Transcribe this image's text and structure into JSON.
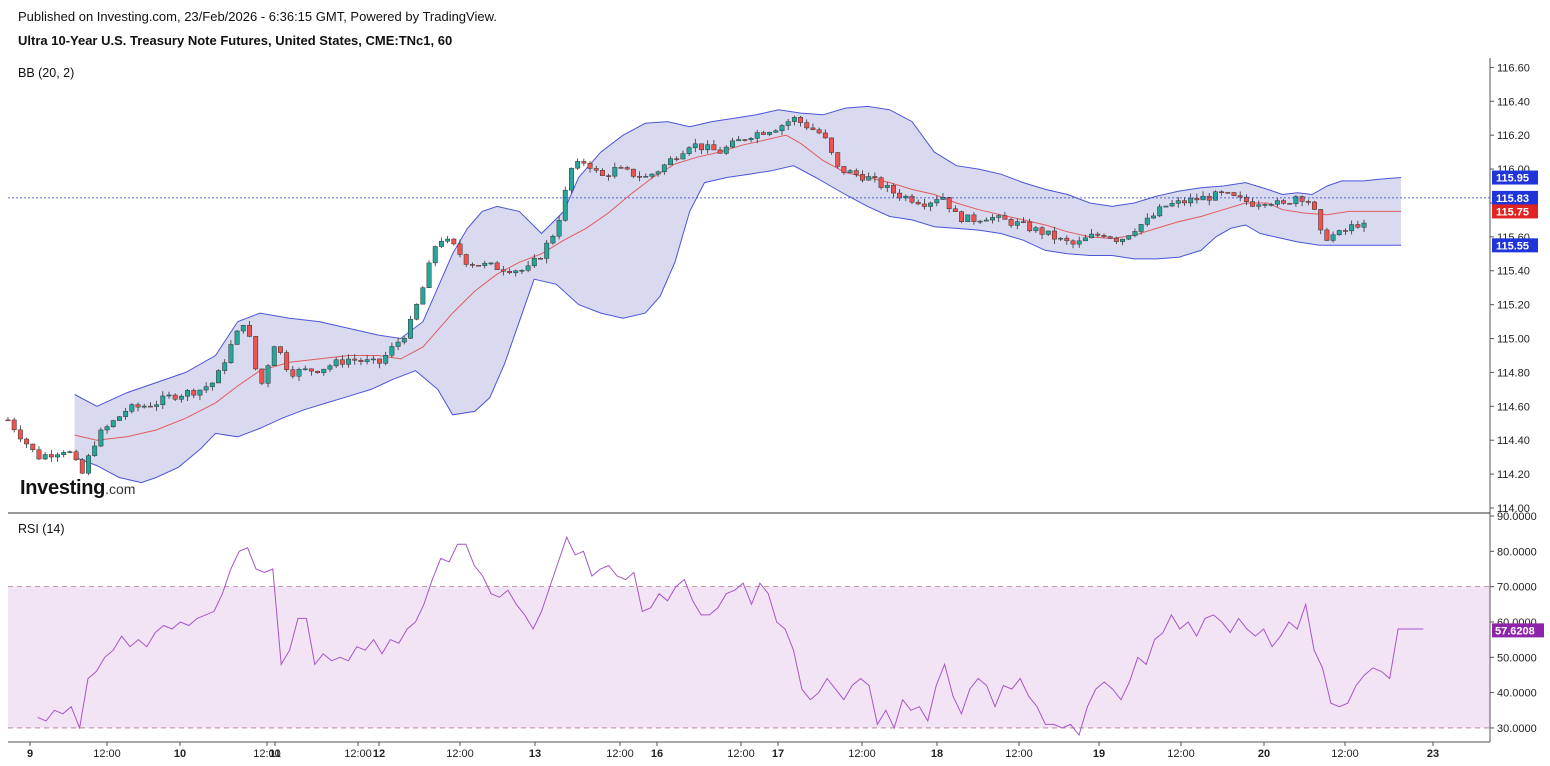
{
  "header": {
    "published": "Published on Investing.com, 23/Feb/2026 - 6:36:15 GMT, Powered by TradingView.",
    "title": "Ultra 10-Year U.S. Treasury Note Futures, United States, CME:TNc1, 60"
  },
  "logo": {
    "word": "Investing",
    "suffix": ".com"
  },
  "colors": {
    "up": "#26a69a",
    "down": "#ef5350",
    "band_fill": "#d9daf0",
    "band_line": "#4b55d6",
    "basis": "#e05c5c",
    "rsi_line": "#a855c8",
    "rsi_fill": "#f2e4f5",
    "last_price": "#1e3fd1",
    "badge_blue": "#1f35d9",
    "badge_red": "#e02424",
    "badge_purple": "#8e24aa"
  },
  "chart_data": [
    {
      "type": "candlestick",
      "indicator": "BB (20, 2)",
      "y_ticks": [
        "116.60",
        "116.40",
        "116.20",
        "116.00",
        "115.80",
        "115.60",
        "115.40",
        "115.20",
        "115.00",
        "114.80",
        "114.60",
        "114.40",
        "114.20",
        "114.00"
      ],
      "ylim": [
        114.0,
        116.62
      ],
      "x_ticks": [
        "9",
        "12:00",
        "10",
        "12:00",
        "11",
        "12:00",
        "12",
        "12:00",
        "13",
        "12:00",
        "16",
        "12:00",
        "17",
        "12:00",
        "18",
        "12:00",
        "19",
        "12:00",
        "20",
        "12:00",
        "23"
      ],
      "price_badges": [
        {
          "label": "115.95",
          "value": 115.95,
          "color": "blue"
        },
        {
          "label": "115.83",
          "value": 115.83,
          "color": "blue"
        },
        {
          "label": "115.75",
          "value": 115.75,
          "color": "red"
        },
        {
          "label": "115.55",
          "value": 115.55,
          "color": "blue"
        }
      ],
      "last_price": 115.83,
      "close_path": [
        [
          0,
          114.52
        ],
        [
          0.02,
          114.3
        ],
        [
          0.04,
          114.35
        ],
        [
          0.05,
          114.2
        ],
        [
          0.06,
          114.42
        ],
        [
          0.08,
          114.58
        ],
        [
          0.1,
          114.62
        ],
        [
          0.11,
          114.66
        ],
        [
          0.13,
          114.7
        ],
        [
          0.14,
          114.75
        ],
        [
          0.15,
          114.95
        ],
        [
          0.16,
          115.12
        ],
        [
          0.17,
          114.7
        ],
        [
          0.18,
          114.98
        ],
        [
          0.19,
          114.8
        ],
        [
          0.21,
          114.82
        ],
        [
          0.23,
          114.88
        ],
        [
          0.25,
          114.85
        ],
        [
          0.26,
          114.95
        ],
        [
          0.27,
          115.05
        ],
        [
          0.28,
          115.3
        ],
        [
          0.29,
          115.6
        ],
        [
          0.3,
          115.55
        ],
        [
          0.31,
          115.45
        ],
        [
          0.33,
          115.42
        ],
        [
          0.35,
          115.4
        ],
        [
          0.36,
          115.5
        ],
        [
          0.37,
          115.65
        ],
        [
          0.38,
          116.0
        ],
        [
          0.39,
          116.05
        ],
        [
          0.4,
          115.95
        ],
        [
          0.41,
          116.0
        ],
        [
          0.43,
          115.95
        ],
        [
          0.44,
          116.0
        ],
        [
          0.46,
          116.15
        ],
        [
          0.48,
          116.1
        ],
        [
          0.5,
          116.2
        ],
        [
          0.52,
          116.25
        ],
        [
          0.53,
          116.3
        ],
        [
          0.55,
          116.2
        ],
        [
          0.56,
          116.0
        ],
        [
          0.58,
          115.95
        ],
        [
          0.59,
          115.9
        ],
        [
          0.6,
          115.85
        ],
        [
          0.62,
          115.8
        ],
        [
          0.63,
          115.85
        ],
        [
          0.64,
          115.72
        ],
        [
          0.65,
          115.7
        ],
        [
          0.66,
          115.72
        ],
        [
          0.68,
          115.68
        ],
        [
          0.7,
          115.62
        ],
        [
          0.71,
          115.58
        ],
        [
          0.72,
          115.55
        ],
        [
          0.73,
          115.6
        ],
        [
          0.74,
          115.62
        ],
        [
          0.75,
          115.58
        ],
        [
          0.76,
          115.65
        ],
        [
          0.77,
          115.7
        ],
        [
          0.78,
          115.78
        ],
        [
          0.79,
          115.8
        ],
        [
          0.8,
          115.82
        ],
        [
          0.82,
          115.85
        ],
        [
          0.83,
          115.82
        ],
        [
          0.84,
          115.8
        ],
        [
          0.85,
          115.82
        ],
        [
          0.86,
          115.78
        ],
        [
          0.87,
          115.85
        ],
        [
          0.88,
          115.8
        ],
        [
          0.885,
          115.62
        ],
        [
          0.89,
          115.6
        ],
        [
          0.9,
          115.62
        ],
        [
          0.91,
          115.68
        ],
        [
          0.915,
          115.66
        ]
      ],
      "bands": {
        "upper": [
          [
            0.045,
            114.67
          ],
          [
            0.06,
            114.6
          ],
          [
            0.08,
            114.68
          ],
          [
            0.1,
            114.74
          ],
          [
            0.12,
            114.8
          ],
          [
            0.14,
            114.9
          ],
          [
            0.155,
            115.1
          ],
          [
            0.17,
            115.15
          ],
          [
            0.19,
            115.12
          ],
          [
            0.21,
            115.1
          ],
          [
            0.23,
            115.06
          ],
          [
            0.25,
            115.02
          ],
          [
            0.265,
            115.0
          ],
          [
            0.28,
            115.1
          ],
          [
            0.29,
            115.3
          ],
          [
            0.3,
            115.5
          ],
          [
            0.31,
            115.65
          ],
          [
            0.32,
            115.75
          ],
          [
            0.33,
            115.78
          ],
          [
            0.345,
            115.75
          ],
          [
            0.36,
            115.62
          ],
          [
            0.375,
            115.75
          ],
          [
            0.385,
            115.95
          ],
          [
            0.395,
            116.05
          ],
          [
            0.4,
            116.1
          ],
          [
            0.415,
            116.2
          ],
          [
            0.43,
            116.27
          ],
          [
            0.445,
            116.28
          ],
          [
            0.46,
            116.25
          ],
          [
            0.475,
            116.28
          ],
          [
            0.49,
            116.3
          ],
          [
            0.505,
            116.32
          ],
          [
            0.52,
            116.35
          ],
          [
            0.535,
            116.33
          ],
          [
            0.55,
            116.32
          ],
          [
            0.565,
            116.36
          ],
          [
            0.58,
            116.37
          ],
          [
            0.595,
            116.35
          ],
          [
            0.61,
            116.28
          ],
          [
            0.625,
            116.1
          ],
          [
            0.64,
            116.02
          ],
          [
            0.655,
            116.0
          ],
          [
            0.67,
            115.97
          ],
          [
            0.685,
            115.92
          ],
          [
            0.7,
            115.88
          ],
          [
            0.715,
            115.85
          ],
          [
            0.73,
            115.8
          ],
          [
            0.745,
            115.78
          ],
          [
            0.76,
            115.8
          ],
          [
            0.775,
            115.84
          ],
          [
            0.79,
            115.87
          ],
          [
            0.805,
            115.89
          ],
          [
            0.82,
            115.9
          ],
          [
            0.835,
            115.92
          ],
          [
            0.85,
            115.88
          ],
          [
            0.86,
            115.85
          ],
          [
            0.87,
            115.86
          ],
          [
            0.88,
            115.85
          ],
          [
            0.89,
            115.9
          ],
          [
            0.9,
            115.93
          ],
          [
            0.915,
            115.93
          ],
          [
            0.925,
            115.94
          ],
          [
            0.94,
            115.95
          ]
        ],
        "lower": [
          [
            0.045,
            114.3
          ],
          [
            0.06,
            114.25
          ],
          [
            0.075,
            114.18
          ],
          [
            0.09,
            114.15
          ],
          [
            0.1,
            114.18
          ],
          [
            0.115,
            114.24
          ],
          [
            0.13,
            114.35
          ],
          [
            0.14,
            114.44
          ],
          [
            0.155,
            114.42
          ],
          [
            0.17,
            114.47
          ],
          [
            0.185,
            114.53
          ],
          [
            0.2,
            114.58
          ],
          [
            0.215,
            114.62
          ],
          [
            0.23,
            114.66
          ],
          [
            0.245,
            114.7
          ],
          [
            0.26,
            114.76
          ],
          [
            0.275,
            114.81
          ],
          [
            0.29,
            114.7
          ],
          [
            0.3,
            114.55
          ],
          [
            0.315,
            114.57
          ],
          [
            0.325,
            114.65
          ],
          [
            0.335,
            114.85
          ],
          [
            0.345,
            115.1
          ],
          [
            0.355,
            115.35
          ],
          [
            0.37,
            115.32
          ],
          [
            0.385,
            115.2
          ],
          [
            0.4,
            115.15
          ],
          [
            0.415,
            115.12
          ],
          [
            0.43,
            115.15
          ],
          [
            0.44,
            115.25
          ],
          [
            0.45,
            115.45
          ],
          [
            0.46,
            115.75
          ],
          [
            0.47,
            115.92
          ],
          [
            0.485,
            115.95
          ],
          [
            0.5,
            115.97
          ],
          [
            0.515,
            115.99
          ],
          [
            0.53,
            116.02
          ],
          [
            0.545,
            115.95
          ],
          [
            0.555,
            115.9
          ],
          [
            0.565,
            115.85
          ],
          [
            0.58,
            115.78
          ],
          [
            0.595,
            115.72
          ],
          [
            0.61,
            115.7
          ],
          [
            0.625,
            115.66
          ],
          [
            0.64,
            115.65
          ],
          [
            0.655,
            115.64
          ],
          [
            0.67,
            115.62
          ],
          [
            0.685,
            115.58
          ],
          [
            0.7,
            115.52
          ],
          [
            0.715,
            115.5
          ],
          [
            0.73,
            115.49
          ],
          [
            0.745,
            115.49
          ],
          [
            0.76,
            115.47
          ],
          [
            0.775,
            115.47
          ],
          [
            0.79,
            115.48
          ],
          [
            0.805,
            115.52
          ],
          [
            0.815,
            115.6
          ],
          [
            0.825,
            115.65
          ],
          [
            0.835,
            115.67
          ],
          [
            0.845,
            115.62
          ],
          [
            0.855,
            115.6
          ],
          [
            0.87,
            115.57
          ],
          [
            0.885,
            115.55
          ],
          [
            0.9,
            115.55
          ],
          [
            0.915,
            115.55
          ],
          [
            0.94,
            115.55
          ]
        ],
        "basis": [
          [
            0.045,
            114.43
          ],
          [
            0.06,
            114.4
          ],
          [
            0.08,
            114.42
          ],
          [
            0.1,
            114.46
          ],
          [
            0.12,
            114.53
          ],
          [
            0.14,
            114.62
          ],
          [
            0.155,
            114.72
          ],
          [
            0.17,
            114.81
          ],
          [
            0.19,
            114.86
          ],
          [
            0.21,
            114.88
          ],
          [
            0.23,
            114.9
          ],
          [
            0.25,
            114.9
          ],
          [
            0.265,
            114.88
          ],
          [
            0.28,
            114.95
          ],
          [
            0.29,
            115.05
          ],
          [
            0.3,
            115.15
          ],
          [
            0.315,
            115.28
          ],
          [
            0.33,
            115.38
          ],
          [
            0.345,
            115.45
          ],
          [
            0.36,
            115.5
          ],
          [
            0.375,
            115.58
          ],
          [
            0.39,
            115.65
          ],
          [
            0.405,
            115.74
          ],
          [
            0.42,
            115.85
          ],
          [
            0.435,
            115.95
          ],
          [
            0.45,
            116.03
          ],
          [
            0.465,
            116.07
          ],
          [
            0.48,
            116.1
          ],
          [
            0.495,
            116.14
          ],
          [
            0.51,
            116.17
          ],
          [
            0.525,
            116.2
          ],
          [
            0.535,
            116.15
          ],
          [
            0.55,
            116.05
          ],
          [
            0.565,
            115.98
          ],
          [
            0.58,
            115.95
          ],
          [
            0.595,
            115.92
          ],
          [
            0.61,
            115.88
          ],
          [
            0.625,
            115.85
          ],
          [
            0.64,
            115.8
          ],
          [
            0.655,
            115.76
          ],
          [
            0.67,
            115.73
          ],
          [
            0.685,
            115.7
          ],
          [
            0.7,
            115.67
          ],
          [
            0.715,
            115.63
          ],
          [
            0.73,
            115.6
          ],
          [
            0.745,
            115.59
          ],
          [
            0.76,
            115.61
          ],
          [
            0.775,
            115.65
          ],
          [
            0.79,
            115.69
          ],
          [
            0.805,
            115.72
          ],
          [
            0.82,
            115.76
          ],
          [
            0.835,
            115.8
          ],
          [
            0.85,
            115.8
          ],
          [
            0.86,
            115.76
          ],
          [
            0.875,
            115.74
          ],
          [
            0.89,
            115.73
          ],
          [
            0.905,
            115.75
          ],
          [
            0.92,
            115.75
          ],
          [
            0.94,
            115.75
          ]
        ]
      }
    },
    {
      "type": "line",
      "indicator": "RSI (14)",
      "y_ticks": [
        "90.0000",
        "80.0000",
        "70.0000",
        "60.0000",
        "50.0000",
        "40.0000",
        "30.0000"
      ],
      "ylim": [
        28,
        90
      ],
      "levels": [
        70,
        30
      ],
      "current_value_label": "57.6208",
      "current_value": 57.62,
      "values": [
        33,
        32,
        35,
        34,
        36,
        30,
        44,
        46,
        50,
        52,
        56,
        53,
        55,
        53,
        57,
        59,
        58,
        60,
        59,
        61,
        62,
        63,
        68,
        75,
        80,
        81,
        75,
        74,
        75,
        48,
        52,
        61,
        61,
        48,
        51,
        49,
        50,
        49,
        53,
        52,
        55,
        51,
        55,
        54,
        58,
        60,
        65,
        72,
        78,
        77,
        82,
        82,
        76,
        73,
        68,
        67,
        69,
        65,
        62,
        58,
        63,
        70,
        77,
        84,
        79,
        80,
        73,
        75,
        76,
        73,
        72,
        74,
        63,
        64,
        68,
        66,
        70,
        72,
        66,
        62,
        62,
        64,
        68,
        69,
        71,
        65,
        71,
        68,
        60,
        58,
        52,
        41,
        38,
        40,
        44,
        41,
        38,
        42,
        44,
        42,
        31,
        35,
        30,
        38,
        35,
        36,
        32,
        42,
        48,
        39,
        34,
        41,
        44,
        42,
        36,
        42,
        41,
        44,
        39,
        36,
        31,
        31,
        30,
        31,
        28,
        36,
        41,
        43,
        41,
        38,
        43,
        50,
        48,
        55,
        57,
        62,
        58,
        60,
        56,
        61,
        62,
        60,
        57,
        61,
        58,
        56,
        58,
        53,
        56,
        60,
        58,
        65,
        52,
        47,
        37,
        36,
        37,
        42,
        45,
        47,
        46,
        44,
        58,
        58,
        58,
        58
      ]
    }
  ]
}
